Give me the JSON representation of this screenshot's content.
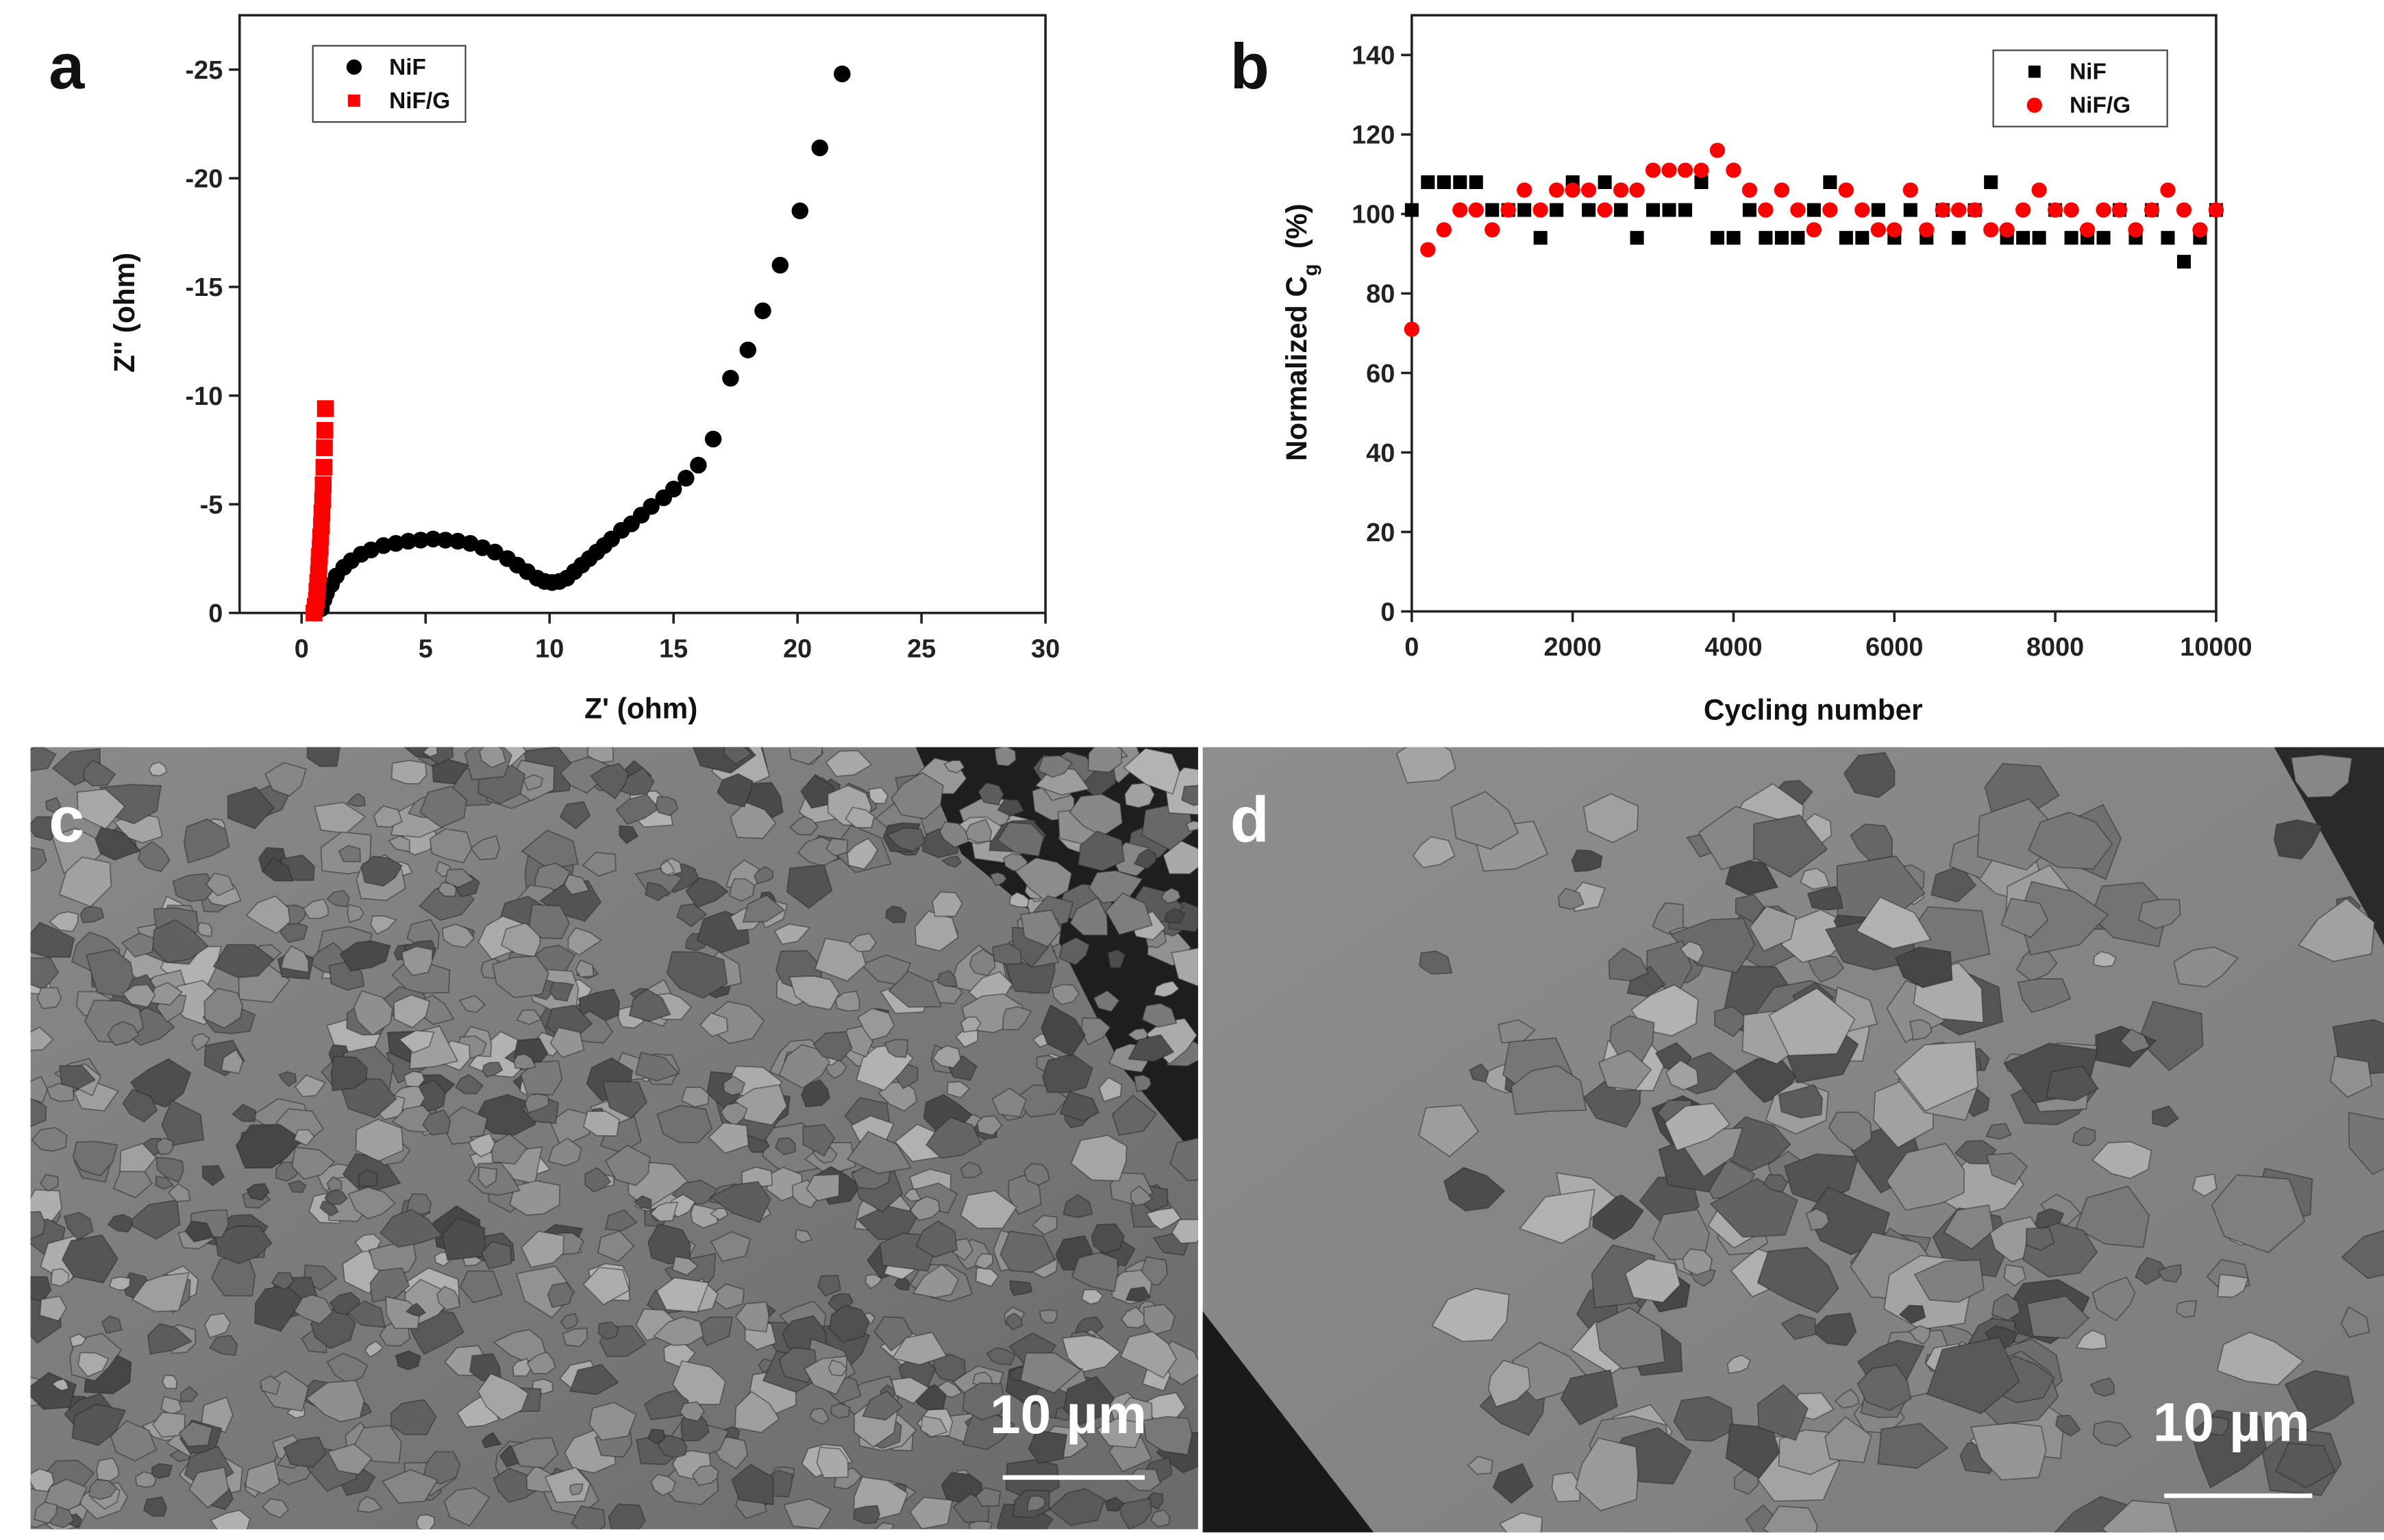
{
  "chart_data": [
    {
      "type": "scatter",
      "panel_label": "a",
      "x_label": "Z' (ohm)",
      "y_label": "Z'' (ohm)",
      "xlim": [
        -2.5,
        30
      ],
      "xticks": [
        0,
        5,
        10,
        15,
        20,
        25,
        30
      ],
      "ylim": [
        0,
        -27.5
      ],
      "yticks": [
        0,
        -5,
        -10,
        -15,
        -20,
        -25
      ],
      "legend": "upper left",
      "series": [
        {
          "name": "NiF",
          "color": "#000000",
          "marker": "circle",
          "x": [
            0.8,
            0.9,
            1.0,
            1.2,
            1.4,
            1.7,
            2.0,
            2.4,
            2.8,
            3.3,
            3.8,
            4.3,
            4.8,
            5.3,
            5.8,
            6.3,
            6.8,
            7.3,
            7.8,
            8.3,
            8.7,
            9.1,
            9.5,
            9.8,
            10.1,
            10.4,
            10.7,
            11.0,
            11.3,
            11.6,
            11.9,
            12.2,
            12.5,
            12.9,
            13.3,
            13.7,
            14.1,
            14.6,
            15.0,
            15.5,
            16.0,
            16.6,
            17.3,
            18.0,
            18.6,
            19.3,
            20.1,
            20.9,
            21.8
          ],
          "values": [
            -0.2,
            -0.6,
            -0.9,
            -1.3,
            -1.7,
            -2.1,
            -2.4,
            -2.7,
            -2.9,
            -3.1,
            -3.2,
            -3.3,
            -3.35,
            -3.4,
            -3.35,
            -3.3,
            -3.2,
            -3.0,
            -2.8,
            -2.5,
            -2.2,
            -1.9,
            -1.6,
            -1.45,
            -1.4,
            -1.45,
            -1.6,
            -1.9,
            -2.2,
            -2.5,
            -2.8,
            -3.1,
            -3.4,
            -3.8,
            -4.1,
            -4.5,
            -4.9,
            -5.3,
            -5.7,
            -6.2,
            -6.8,
            -8.0,
            -10.8,
            -12.1,
            -13.9,
            -16.0,
            -18.5,
            -21.4,
            -24.8
          ]
        },
        {
          "name": "NiF/G",
          "color": "#ff0000",
          "marker": "square",
          "x": [
            0.5,
            0.55,
            0.6,
            0.62,
            0.65,
            0.68,
            0.7,
            0.72,
            0.75,
            0.77,
            0.8,
            0.82,
            0.85,
            0.87,
            0.9,
            0.92,
            0.94,
            0.96
          ],
          "values": [
            0,
            -0.3,
            -0.6,
            -1,
            -1.4,
            -1.8,
            -2.2,
            -2.6,
            -3,
            -3.5,
            -4,
            -4.6,
            -5.2,
            -5.9,
            -6.7,
            -7.6,
            -8.4,
            -9.4
          ]
        }
      ]
    },
    {
      "type": "scatter",
      "panel_label": "b",
      "x_label": "Cycling number",
      "y_label": {
        "text": "Normalized C",
        "subscript": "g",
        "unit": "(%)"
      },
      "xlim": [
        0,
        10000
      ],
      "xticks": [
        0,
        2000,
        4000,
        6000,
        8000,
        10000
      ],
      "ylim": [
        0,
        150
      ],
      "yticks": [
        0,
        20,
        40,
        60,
        80,
        100,
        120,
        140
      ],
      "legend": "upper right",
      "series": [
        {
          "name": "NiF",
          "color": "#000000",
          "marker": "square",
          "x": [
            0,
            200,
            400,
            600,
            800,
            1000,
            1200,
            1400,
            1600,
            1800,
            2000,
            2200,
            2400,
            2600,
            2800,
            3000,
            3200,
            3400,
            3600,
            3800,
            4000,
            4200,
            4400,
            4600,
            4800,
            5000,
            5200,
            5400,
            5600,
            5800,
            6000,
            6200,
            6400,
            6600,
            6800,
            7000,
            7200,
            7400,
            7600,
            7800,
            8000,
            8200,
            8400,
            8600,
            8800,
            9000,
            9200,
            9400,
            9600,
            9800,
            10000
          ],
          "values": [
            101,
            108,
            108,
            108,
            108,
            101,
            101,
            101,
            94,
            101,
            108,
            101,
            108,
            101,
            94,
            101,
            101,
            101,
            108,
            94,
            94,
            101,
            94,
            94,
            94,
            101,
            108,
            94,
            94,
            101,
            94,
            101,
            94,
            101,
            94,
            101,
            108,
            94,
            94,
            94,
            101,
            94,
            94,
            94,
            101,
            94,
            101,
            94,
            88,
            94,
            101
          ]
        },
        {
          "name": "NiF/G",
          "color": "#ff0000",
          "marker": "circle",
          "x": [
            0,
            200,
            400,
            600,
            800,
            1000,
            1200,
            1400,
            1600,
            1800,
            2000,
            2200,
            2400,
            2600,
            2800,
            3000,
            3200,
            3400,
            3600,
            3800,
            4000,
            4200,
            4400,
            4600,
            4800,
            5000,
            5200,
            5400,
            5600,
            5800,
            6000,
            6200,
            6400,
            6600,
            6800,
            7000,
            7200,
            7400,
            7600,
            7800,
            8000,
            8200,
            8400,
            8600,
            8800,
            9000,
            9200,
            9400,
            9600,
            9800,
            10000
          ],
          "values": [
            71,
            91,
            96,
            101,
            101,
            96,
            101,
            106,
            101,
            106,
            106,
            106,
            101,
            106,
            106,
            111,
            111,
            111,
            111,
            116,
            111,
            106,
            101,
            106,
            101,
            96,
            101,
            106,
            101,
            96,
            96,
            106,
            96,
            101,
            101,
            101,
            96,
            96,
            101,
            106,
            101,
            101,
            96,
            101,
            101,
            96,
            101,
            106,
            101,
            96,
            101
          ]
        }
      ]
    }
  ],
  "images": [
    {
      "panel_label": "c",
      "scale_bar": "10 µm"
    },
    {
      "panel_label": "d",
      "scale_bar": "10 µm"
    }
  ]
}
